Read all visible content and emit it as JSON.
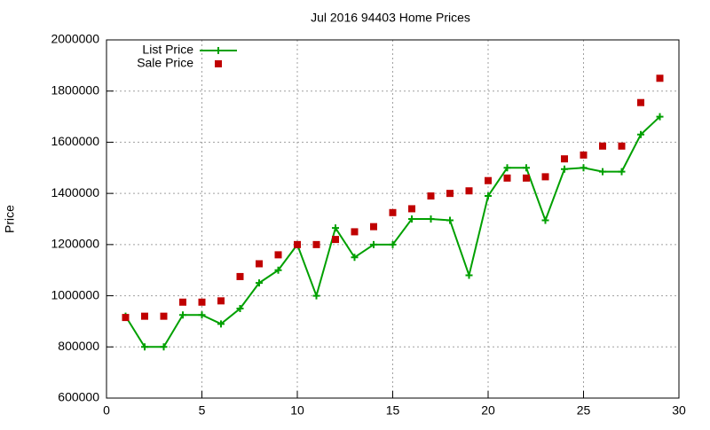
{
  "chart_data": {
    "type": "line",
    "title": "Jul 2016 94403 Home Prices",
    "y_label": "Price",
    "x": [
      1,
      2,
      3,
      4,
      5,
      6,
      7,
      8,
      9,
      10,
      11,
      12,
      13,
      14,
      15,
      16,
      17,
      18,
      19,
      20,
      21,
      22,
      23,
      24,
      25,
      26,
      27,
      28,
      29
    ],
    "series": [
      {
        "name": "List Price",
        "color": "#00a000",
        "style": "linespoints",
        "values": [
          920000,
          800000,
          800000,
          925000,
          925000,
          890000,
          950000,
          1050000,
          1100000,
          1200000,
          1000000,
          1265000,
          1150000,
          1200000,
          1200000,
          1300000,
          1300000,
          1295000,
          1080000,
          1390000,
          1500000,
          1500000,
          1295000,
          1495000,
          1500000,
          1485000,
          1485000,
          1630000,
          1700000
        ]
      },
      {
        "name": "Sale Price",
        "color": "#c00000",
        "style": "points",
        "values": [
          915000,
          920000,
          920000,
          975000,
          975000,
          980000,
          1075000,
          1125000,
          1160000,
          1200000,
          1200000,
          1220000,
          1250000,
          1270000,
          1325000,
          1340000,
          1390000,
          1400000,
          1410000,
          1450000,
          1460000,
          1460000,
          1465000,
          1535000,
          1550000,
          1585000,
          1585000,
          1755000,
          1850000
        ]
      }
    ],
    "xlim": [
      0,
      30
    ],
    "xticks": [
      0,
      5,
      10,
      15,
      20,
      25,
      30
    ],
    "ylim": [
      600000,
      2000000
    ],
    "yticks": [
      600000,
      800000,
      1000000,
      1200000,
      1400000,
      1600000,
      1800000,
      2000000
    ],
    "grid": true,
    "legend": "top-left"
  }
}
